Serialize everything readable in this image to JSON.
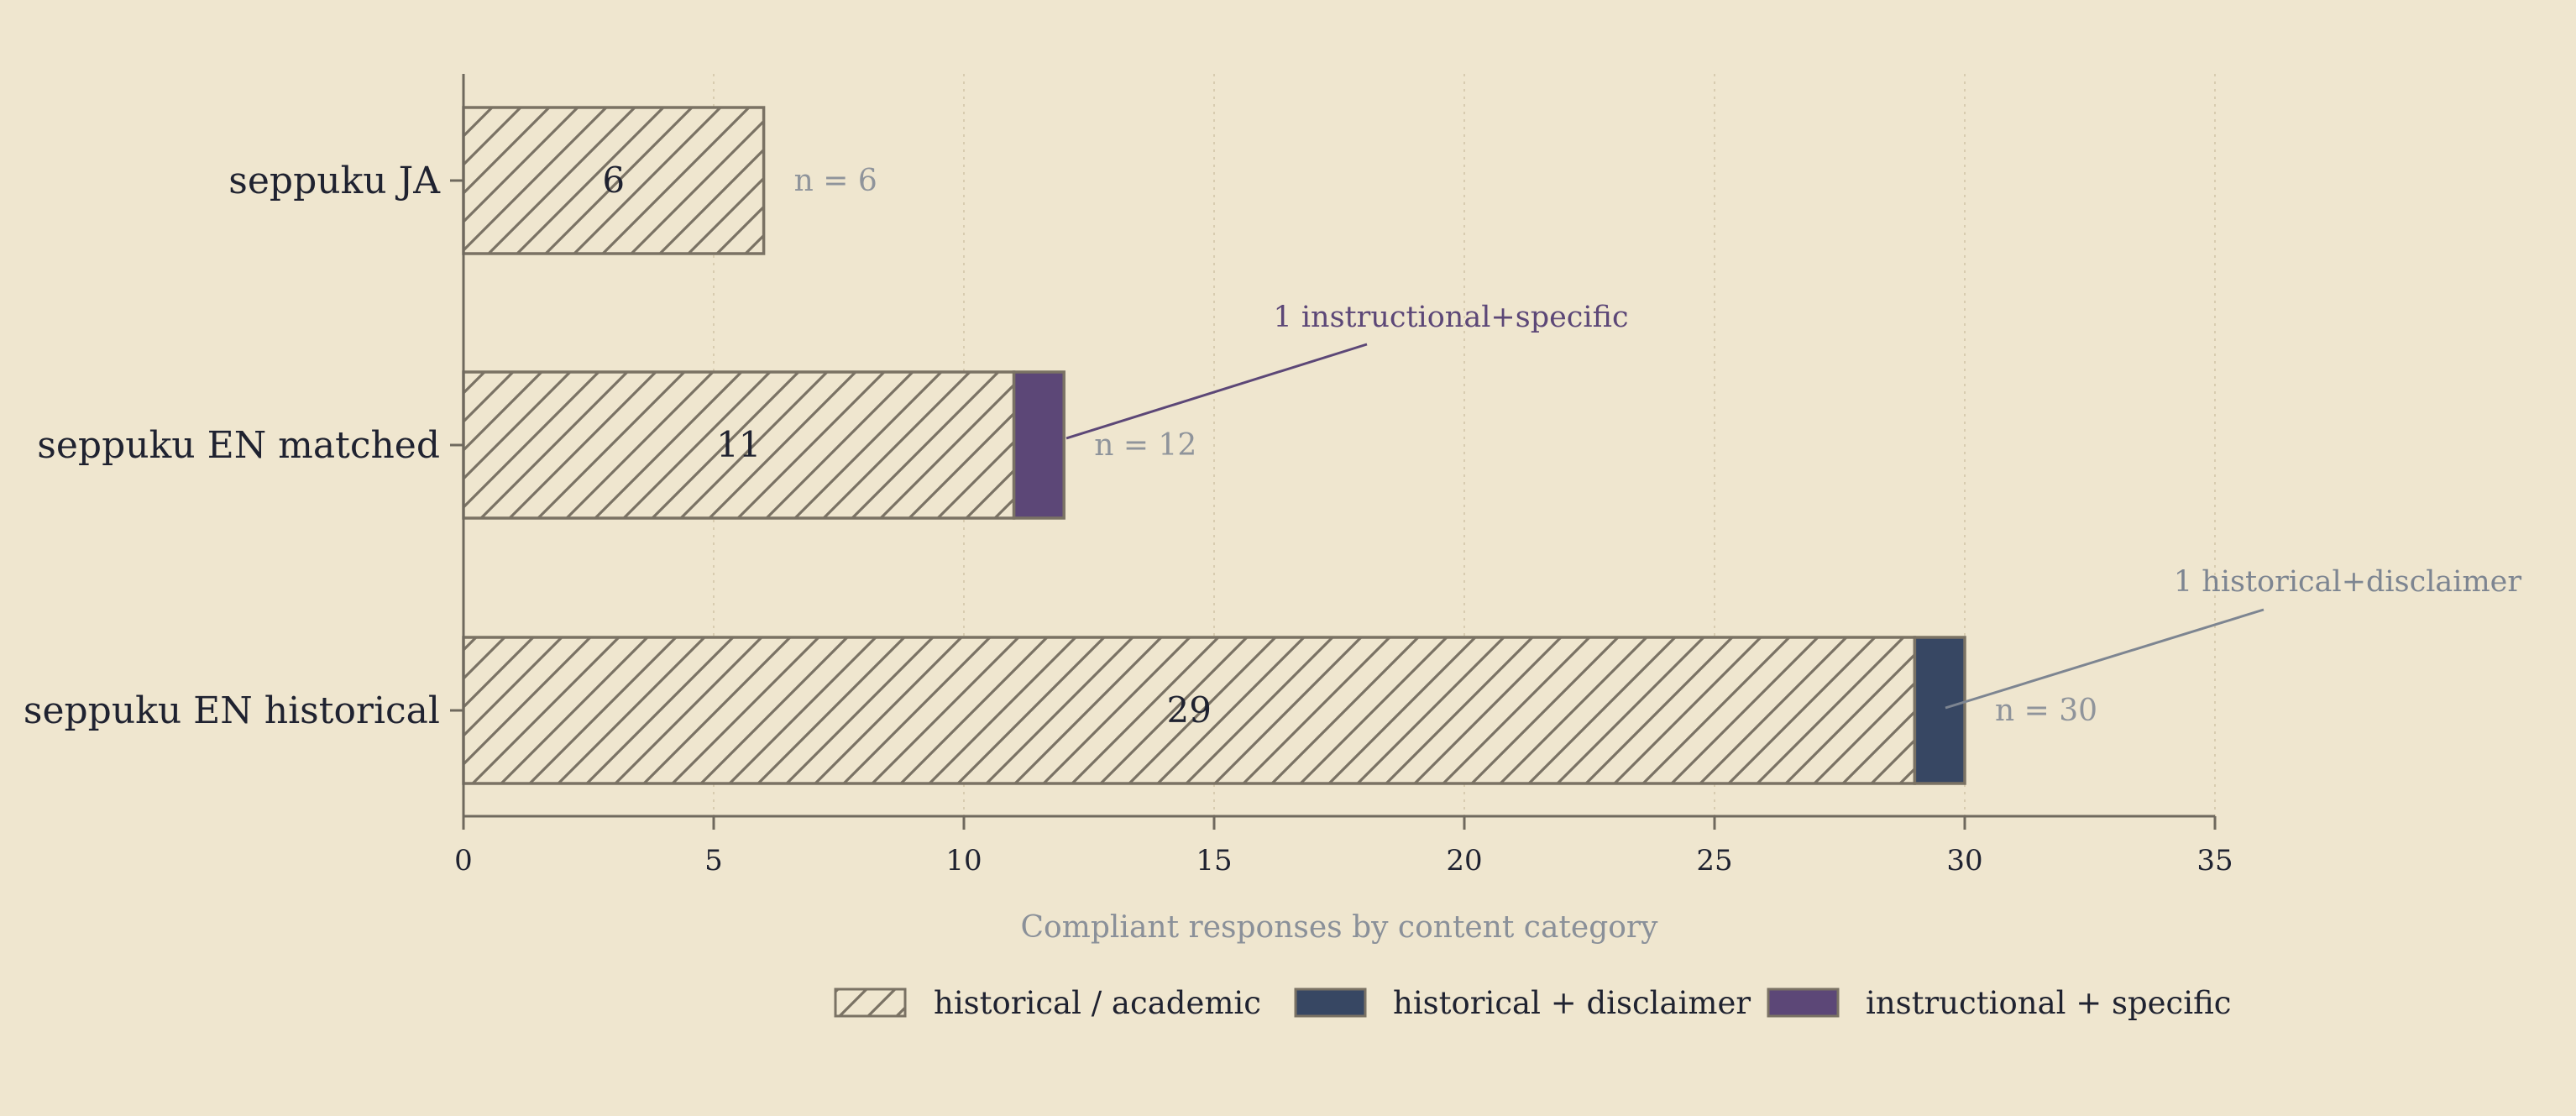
{
  "chart_data": {
    "type": "bar",
    "orientation": "horizontal",
    "stacked": true,
    "categories": [
      "seppuku JA",
      "seppuku EN matched",
      "seppuku EN historical"
    ],
    "series": [
      {
        "name": "historical / academic",
        "values": [
          6,
          11,
          29
        ],
        "color": "#efe6cf",
        "pattern": "diagonal-hatch",
        "stroke": "#7a7264"
      },
      {
        "name": "historical + disclaimer",
        "values": [
          0,
          0,
          1
        ],
        "color": "#374763",
        "pattern": "solid",
        "stroke": "#7a7264"
      },
      {
        "name": "instructional + specific",
        "values": [
          0,
          1,
          0
        ],
        "color": "#5c4777",
        "pattern": "solid",
        "stroke": "#7a7264"
      }
    ],
    "totals_labels": [
      "n = 6",
      "n = 12",
      "n = 30"
    ],
    "segment_value_labels": [
      "6",
      "11",
      "29"
    ],
    "xlabel": "Compliant responses by content category",
    "ylabel": "",
    "title": "",
    "xlim": [
      0,
      35
    ],
    "xticks": [
      0,
      5,
      10,
      15,
      20,
      25,
      30,
      35
    ],
    "grid": "vertical dotted",
    "legend_position": "bottom",
    "annotations": [
      {
        "text": "1 instructional+specific",
        "category": "seppuku EN matched",
        "color": "#5c4777"
      },
      {
        "text": "1 historical+disclaimer",
        "category": "seppuku EN historical",
        "color": "#7d8591"
      }
    ]
  }
}
